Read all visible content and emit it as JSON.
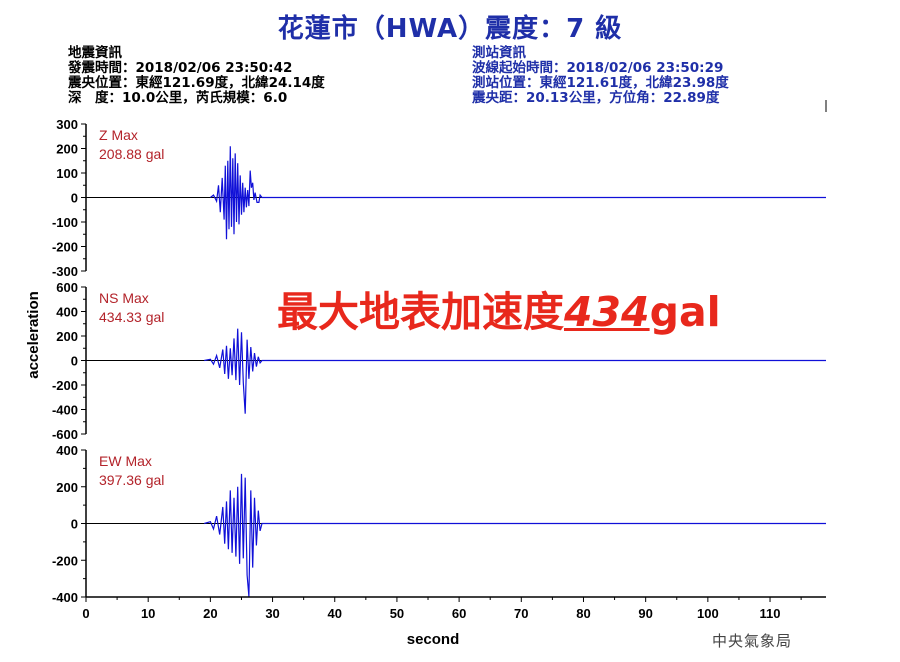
{
  "header": {
    "title": "花蓮市（HWA）震度：7 級",
    "earthquake_info": {
      "heading": "地震資訊",
      "origin_time": "發震時間：2018/02/06 23:50:42",
      "epicenter": "震央位置：東經121.69度，北緯24.14度",
      "depth_mag": "深　度：10.0公里，芮氏規模：6.0"
    },
    "station_info": {
      "heading": "測站資訊",
      "wave_start": "波線起始時間：2018/02/06 23:50:29",
      "station_pos": "測站位置：東經121.61度，北緯23.98度",
      "distance": "震央距：20.13公里，方位角：22.89度"
    }
  },
  "overlay": {
    "prefix": "最大地表加速度",
    "number": "434",
    "unit": "gal"
  },
  "credit": "中央氣象局",
  "chart_data": {
    "type": "line",
    "xlabel": "second",
    "ylabel": "acceleration",
    "x_ticks": [
      0,
      10,
      20,
      30,
      40,
      50,
      60,
      70,
      80,
      90,
      100,
      110
    ],
    "xlim": [
      0,
      119
    ],
    "panels": [
      {
        "name": "Z Max",
        "max_label": "208.88 gal",
        "ylim": [
          -300,
          300
        ],
        "y_ticks": [
          300,
          200,
          100,
          0,
          -100,
          -200,
          -300
        ],
        "x": [
          20,
          20.5,
          21,
          21.3,
          21.6,
          21.9,
          22.2,
          22.4,
          22.6,
          22.8,
          23.0,
          23.2,
          23.4,
          23.6,
          23.8,
          24.0,
          24.2,
          24.4,
          24.6,
          24.8,
          25.0,
          25.2,
          25.4,
          25.6,
          25.8,
          26.0,
          26.2,
          26.4,
          26.6,
          26.8,
          27.0,
          27.2,
          27.5,
          27.8,
          28.0,
          28.3,
          119
        ],
        "y": [
          0,
          10,
          -15,
          50,
          -60,
          80,
          -90,
          130,
          -170,
          150,
          -130,
          208.88,
          -120,
          160,
          -150,
          180,
          -100,
          140,
          -110,
          90,
          -70,
          60,
          -60,
          40,
          -40,
          30,
          -35,
          110,
          40,
          60,
          -10,
          20,
          -20,
          -20,
          10,
          0,
          0
        ]
      },
      {
        "name": "NS Max",
        "max_label": "434.33 gal",
        "ylim": [
          -600,
          600
        ],
        "y_ticks": [
          600,
          400,
          200,
          0,
          -200,
          -400,
          -600
        ],
        "x": [
          19,
          20,
          20.5,
          21,
          21.5,
          22,
          22.3,
          22.6,
          22.9,
          23.2,
          23.5,
          23.8,
          24.1,
          24.4,
          24.7,
          25.0,
          25.3,
          25.6,
          25.9,
          26.2,
          26.5,
          26.8,
          27.1,
          27.4,
          27.7,
          28.0,
          28.3,
          119
        ],
        "y": [
          0,
          10,
          -30,
          40,
          -60,
          90,
          -110,
          120,
          -150,
          100,
          -120,
          180,
          -160,
          260,
          -200,
          230,
          -180,
          -434.33,
          170,
          -150,
          110,
          -90,
          60,
          -50,
          30,
          -20,
          0,
          0
        ]
      },
      {
        "name": "EW Max",
        "max_label": "397.36 gal",
        "ylim": [
          -400,
          400
        ],
        "y_ticks": [
          400,
          200,
          0,
          -200,
          -400
        ],
        "x": [
          19,
          20,
          20.5,
          21,
          21.5,
          22,
          22.3,
          22.6,
          22.9,
          23.2,
          23.5,
          23.8,
          24.1,
          24.4,
          24.7,
          25.0,
          25.3,
          25.6,
          25.9,
          26.2,
          26.5,
          26.8,
          27.1,
          27.4,
          27.7,
          28.0,
          28.3,
          119
        ],
        "y": [
          0,
          10,
          -30,
          40,
          -60,
          90,
          -110,
          120,
          -140,
          180,
          -160,
          140,
          -180,
          200,
          -220,
          270,
          -190,
          250,
          -280,
          -397.36,
          180,
          -240,
          140,
          -120,
          70,
          -40,
          0,
          0
        ]
      }
    ]
  }
}
